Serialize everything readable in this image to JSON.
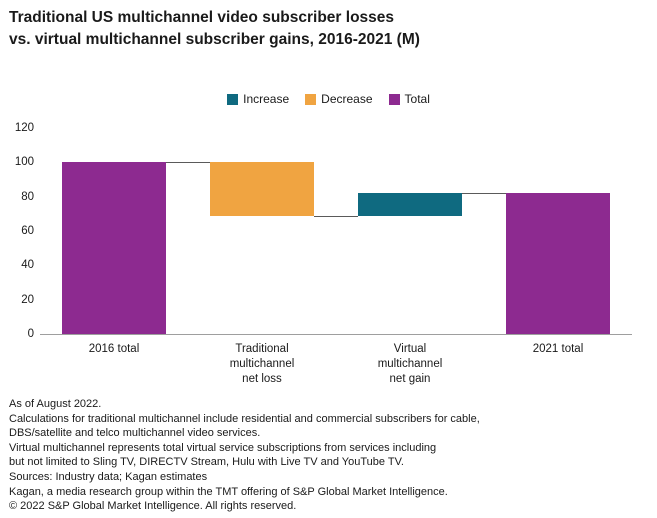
{
  "title": {
    "line1": "Traditional US multichannel video subscriber losses",
    "line2": "vs. virtual multichannel subscriber gains, 2016-2021 (M)"
  },
  "legend": [
    {
      "label": "Increase",
      "color": "#0f6a80"
    },
    {
      "label": "Decrease",
      "color": "#f0a441"
    },
    {
      "label": "Total",
      "color": "#8d2a90"
    }
  ],
  "chart_data": {
    "type": "bar",
    "subtype": "waterfall",
    "title": "Traditional US multichannel video subscriber losses vs. virtual multichannel subscriber gains, 2016-2021 (M)",
    "categories": [
      "2016 total",
      "Traditional\nmultichannel\nnet loss",
      "Virtual\nmultichannel\nnet gain",
      "2021 total"
    ],
    "bars": [
      {
        "label": "2016 total",
        "kind": "total",
        "start": 0,
        "end": 100
      },
      {
        "label": "Traditional multichannel net loss",
        "kind": "decrease",
        "start": 100,
        "end": 69
      },
      {
        "label": "Virtual multichannel net gain",
        "kind": "increase",
        "start": 69,
        "end": 82
      },
      {
        "label": "2021 total",
        "kind": "total",
        "start": 0,
        "end": 82
      }
    ],
    "connectors": [
      {
        "level": 100,
        "from": 0,
        "to": 1
      },
      {
        "level": 69,
        "from": 1,
        "to": 2
      },
      {
        "level": 82,
        "from": 2,
        "to": 3
      }
    ],
    "xlabel": "",
    "ylabel": "",
    "ylim": [
      0,
      120
    ],
    "yticks": [
      0,
      20,
      40,
      60,
      80,
      100,
      120
    ],
    "grid": false,
    "legend_position": "top-center"
  },
  "footnotes": [
    "As of August 2022.",
    "Calculations for traditional multichannel include residential and commercial subscribers for cable,",
    "DBS/satellite and telco multichannel video services.",
    "Virtual multichannel represents total virtual service subscriptions from services including",
    "but not limited to Sling TV, DIRECTV Stream, Hulu with Live TV and YouTube TV.",
    "Sources: Industry data; Kagan estimates",
    "Kagan, a media research group within the TMT offering of S&P Global Market Intelligence.",
    "© 2022 S&P Global Market Intelligence. All rights reserved."
  ]
}
